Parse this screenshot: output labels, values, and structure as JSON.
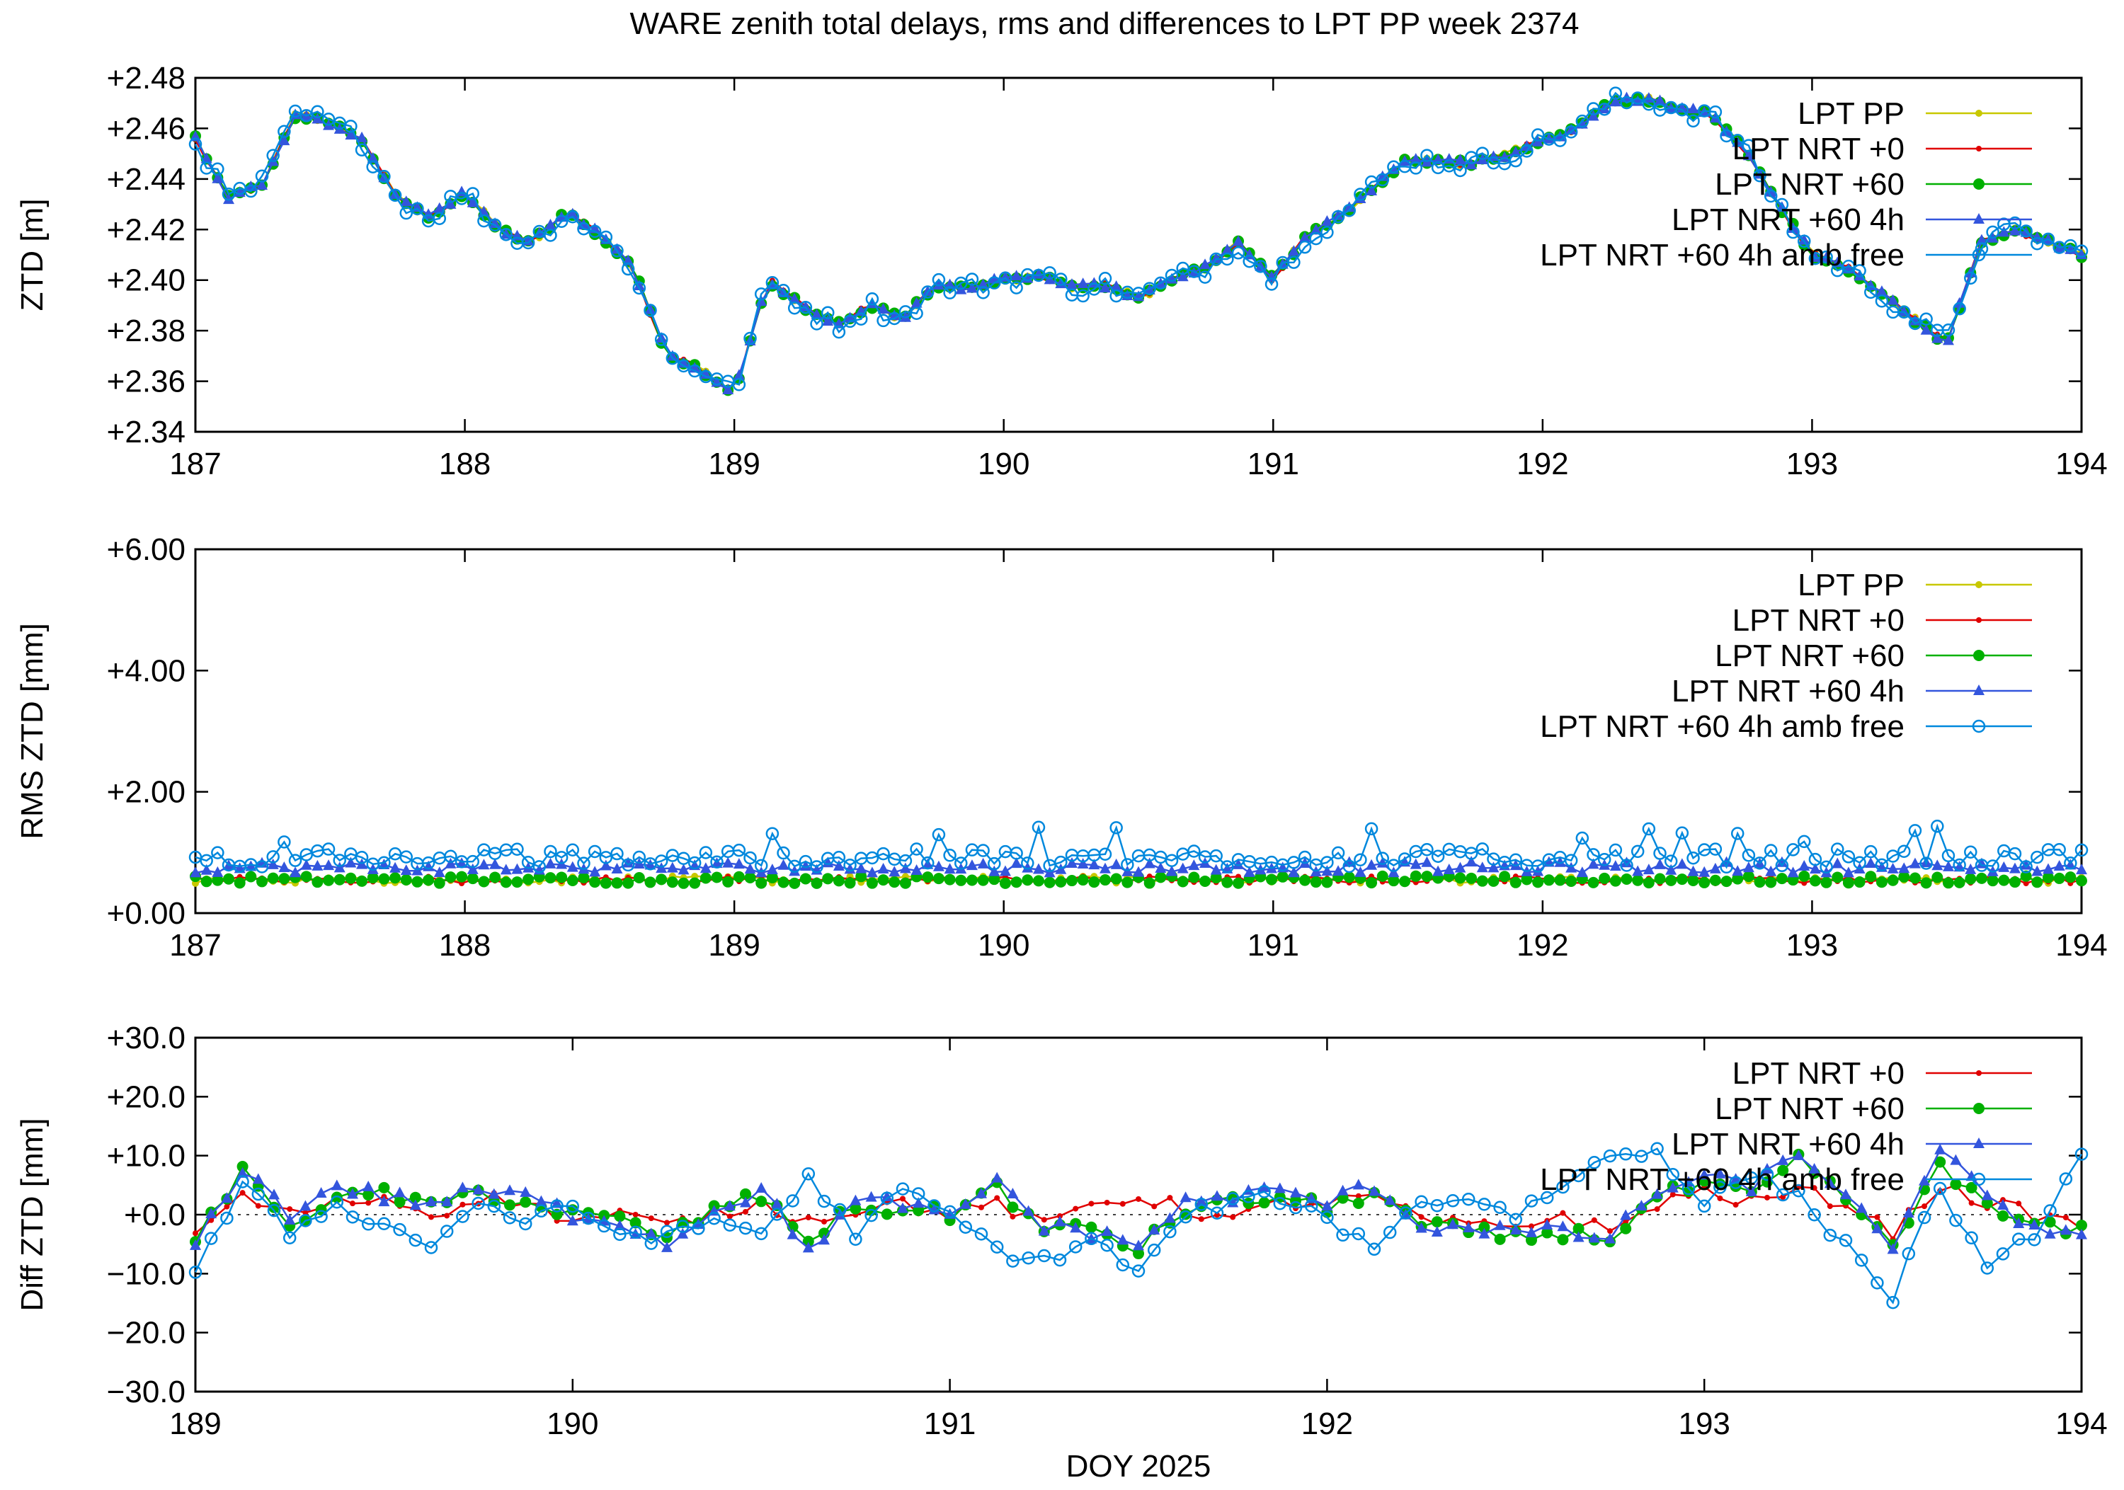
{
  "title": "WARE zenith total delays, rms and differences to LPT PP week 2374",
  "colors": {
    "LPT PP": "#c8c800",
    "LPT NRT +0": "#e00000",
    "LPT NRT +60": "#00b000",
    "LPT NRT +60 4h": "#3355dd",
    "LPT NRT +60 4h amb free": "#0088dd"
  },
  "chart_data": [
    {
      "type": "line",
      "ylabel": "ZTD [m]",
      "xlabel": "",
      "xlim": [
        187,
        194
      ],
      "ylim": [
        2.34,
        2.48
      ],
      "xticks": [
        187,
        188,
        189,
        190,
        191,
        192,
        193,
        194
      ],
      "yticks": [
        2.34,
        2.36,
        2.38,
        2.4,
        2.42,
        2.44,
        2.46,
        2.48
      ],
      "ytick_labels": [
        "+2.34",
        "+2.36",
        "+2.38",
        "+2.40",
        "+2.42",
        "+2.44",
        "+2.46",
        "+2.48"
      ],
      "legend": "top-right",
      "series_names": [
        "LPT PP",
        "LPT NRT +0",
        "LPT NRT +60",
        "LPT NRT +60 4h",
        "LPT NRT +60 4h amb free"
      ],
      "markers": [
        "dot",
        "smalldot",
        "filledcircle",
        "triangle",
        "opencircle"
      ],
      "x": [
        187.0,
        187.125,
        187.25,
        187.375,
        187.5,
        187.625,
        187.75,
        187.875,
        188.0,
        188.125,
        188.25,
        188.375,
        188.5,
        188.625,
        188.75,
        188.875,
        189.0,
        189.125,
        189.25,
        189.375,
        189.5,
        189.625,
        189.75,
        189.875,
        190.0,
        190.125,
        190.25,
        190.375,
        190.5,
        190.625,
        190.75,
        190.875,
        191.0,
        191.125,
        191.25,
        191.375,
        191.5,
        191.625,
        191.75,
        191.875,
        192.0,
        192.125,
        192.25,
        192.375,
        192.5,
        192.625,
        192.75,
        192.875,
        193.0,
        193.125,
        193.25,
        193.375,
        193.5,
        193.625,
        193.75,
        193.875,
        194.0
      ],
      "y": [
        2.456,
        2.432,
        2.438,
        2.466,
        2.462,
        2.455,
        2.432,
        2.425,
        2.435,
        2.42,
        2.415,
        2.427,
        2.418,
        2.405,
        2.37,
        2.365,
        2.355,
        2.4,
        2.39,
        2.382,
        2.39,
        2.385,
        2.398,
        2.397,
        2.4,
        2.402,
        2.397,
        2.398,
        2.393,
        2.4,
        2.405,
        2.415,
        2.4,
        2.418,
        2.425,
        2.437,
        2.448,
        2.447,
        2.446,
        2.45,
        2.455,
        2.46,
        2.47,
        2.472,
        2.468,
        2.465,
        2.452,
        2.43,
        2.41,
        2.405,
        2.395,
        2.385,
        2.375,
        2.415,
        2.42,
        2.415,
        2.41
      ],
      "y_amb_free_spread": 0.004
    },
    {
      "type": "line",
      "ylabel": "RMS ZTD [mm]",
      "xlabel": "",
      "xlim": [
        187,
        194
      ],
      "ylim": [
        0,
        6
      ],
      "xticks": [
        187,
        188,
        189,
        190,
        191,
        192,
        193,
        194
      ],
      "yticks": [
        0,
        2,
        4,
        6
      ],
      "ytick_labels": [
        "+0.00",
        "+2.00",
        "+4.00",
        "+6.00"
      ],
      "legend": "top-right",
      "series_names": [
        "LPT PP",
        "LPT NRT +0",
        "LPT NRT +60",
        "LPT NRT +60 4h",
        "LPT NRT +60 4h amb free"
      ],
      "markers": [
        "dot",
        "smalldot",
        "filledcircle",
        "triangle",
        "opencircle"
      ],
      "typical_values": {
        "LPT PP": 0.55,
        "LPT NRT +0": 0.55,
        "LPT NRT +60": 0.55,
        "LPT NRT +60 4h": 0.75,
        "LPT NRT +60 4h amb free": 0.85
      }
    },
    {
      "type": "line",
      "ylabel": "Diff ZTD [mm]",
      "xlabel": "DOY 2025",
      "xlim": [
        189,
        194
      ],
      "ylim": [
        -30,
        30
      ],
      "xticks": [
        189,
        190,
        191,
        192,
        193,
        194
      ],
      "yticks": [
        -30,
        -20,
        -10,
        0,
        10,
        20,
        30
      ],
      "ytick_labels": [
        "−30.0",
        "−20.0",
        "−10.0",
        "+0.0",
        "+10.0",
        "+20.0",
        "+30.0"
      ],
      "legend": "top-right",
      "series_names": [
        "LPT NRT +0",
        "LPT NRT +60",
        "LPT NRT +60 4h",
        "LPT NRT +60 4h amb free"
      ],
      "markers": [
        "smalldot",
        "filledcircle",
        "triangle",
        "opencircle"
      ],
      "zero_line": true,
      "x": [
        189.0,
        189.125,
        189.25,
        189.375,
        189.5,
        189.625,
        189.75,
        189.875,
        190.0,
        190.125,
        190.25,
        190.375,
        190.5,
        190.625,
        190.75,
        190.875,
        191.0,
        191.125,
        191.25,
        191.375,
        191.5,
        191.625,
        191.75,
        191.875,
        192.0,
        192.125,
        192.25,
        192.375,
        192.5,
        192.625,
        192.75,
        192.875,
        193.0,
        193.125,
        193.25,
        193.375,
        193.5,
        193.625,
        193.75,
        193.875,
        194.0
      ],
      "series": [
        {
          "name": "LPT NRT +0",
          "values": [
            -3,
            3,
            0,
            2,
            3,
            0,
            3,
            2,
            -1,
            0,
            -2,
            0,
            2,
            -1,
            1,
            2,
            0,
            2,
            -2,
            2,
            3,
            1,
            -1,
            2,
            2,
            3,
            -1,
            -2,
            -2,
            0,
            -3,
            2,
            4,
            2,
            4,
            2,
            -3,
            5,
            2,
            0,
            -2
          ]
        },
        {
          "name": "LPT NRT +60",
          "values": [
            -4,
            7,
            -1,
            2,
            4,
            1,
            4,
            2,
            0,
            -1,
            -4,
            1,
            3,
            -4,
            1,
            1,
            0,
            5,
            -3,
            -2,
            -6,
            1,
            2,
            3,
            1,
            4,
            -2,
            -3,
            -4,
            -3,
            -4,
            3,
            5,
            3,
            9,
            3,
            -6,
            9,
            1,
            -2,
            -3
          ]
        },
        {
          "name": "LPT NRT +60 4h",
          "values": [
            -5,
            8,
            0,
            5,
            3,
            2,
            4,
            3,
            0,
            -1,
            -5,
            1,
            4,
            -6,
            2,
            2,
            -1,
            6,
            -2,
            -3,
            -5,
            2,
            3,
            4,
            2,
            5,
            -2,
            -2,
            -3,
            -3,
            -4,
            4,
            6,
            5,
            10,
            4,
            -7,
            12,
            2,
            -2,
            -3
          ]
        },
        {
          "name": "LPT NRT +60 4h amb free",
          "values": [
            -10,
            5,
            -3,
            2,
            -2,
            -5,
            2,
            -1,
            1,
            -3,
            -4,
            -1,
            -3,
            6,
            -3,
            4,
            0,
            -6,
            -8,
            -4,
            -10,
            0,
            2,
            3,
            -1,
            -5,
            2,
            3,
            0,
            5,
            10,
            11,
            2,
            7,
            3,
            -5,
            -14,
            5,
            -10,
            -3,
            10
          ]
        }
      ]
    }
  ]
}
